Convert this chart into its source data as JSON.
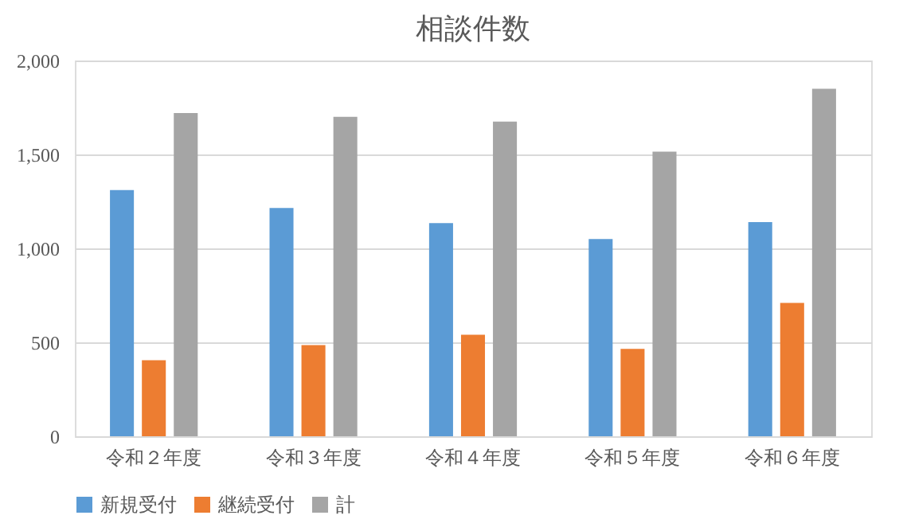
{
  "chart_data": {
    "type": "bar",
    "title": "相談件数",
    "categories": [
      "令和２年度",
      "令和３年度",
      "令和４年度",
      "令和５年度",
      "令和６年度"
    ],
    "series": [
      {
        "name": "新規受付",
        "color": "#5b9bd5",
        "values": [
          1310,
          1215,
          1135,
          1050,
          1140
        ]
      },
      {
        "name": "継続受付",
        "color": "#ed7d31",
        "values": [
          405,
          485,
          540,
          465,
          710
        ]
      },
      {
        "name": "計",
        "color": "#a5a5a5",
        "values": [
          1720,
          1700,
          1675,
          1515,
          1850
        ]
      }
    ],
    "ylim": [
      0,
      2000
    ],
    "yticks": [
      {
        "value": 0,
        "label": "0"
      },
      {
        "value": 500,
        "label": "500"
      },
      {
        "value": 1000,
        "label": "1,000"
      },
      {
        "value": 1500,
        "label": "1,500"
      },
      {
        "value": 2000,
        "label": "2,000"
      }
    ],
    "grid": "y",
    "legend": "bottom"
  }
}
